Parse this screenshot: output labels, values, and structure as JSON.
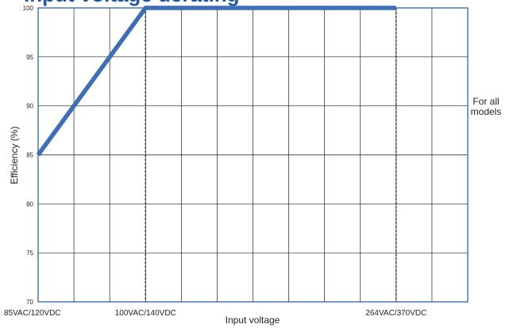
{
  "chart_data": {
    "type": "line",
    "title": "Input voltage derating",
    "xlabel": "Input voltage",
    "ylabel": "Efficiency (%)",
    "ylim": [
      70,
      100
    ],
    "y_ticks": [
      70,
      75,
      80,
      85,
      90,
      95,
      100
    ],
    "x_ticks": [
      {
        "label": "85VAC/120VDC",
        "x": 0,
        "dashed": false
      },
      {
        "label": "100VAC/140VDC",
        "x": 3,
        "dashed": true
      },
      {
        "label": "264VAC/370VDC",
        "x": 10,
        "dashed": true
      }
    ],
    "x_range": [
      0,
      12
    ],
    "grid": true,
    "series": [
      {
        "points": [
          [
            0,
            85
          ],
          [
            3,
            100
          ],
          [
            10,
            100
          ]
        ],
        "color": "#3d6eb7"
      }
    ],
    "annotation": "For all\nmodels",
    "grid_color": "#231f20",
    "axis_color": "#1f57a4"
  }
}
